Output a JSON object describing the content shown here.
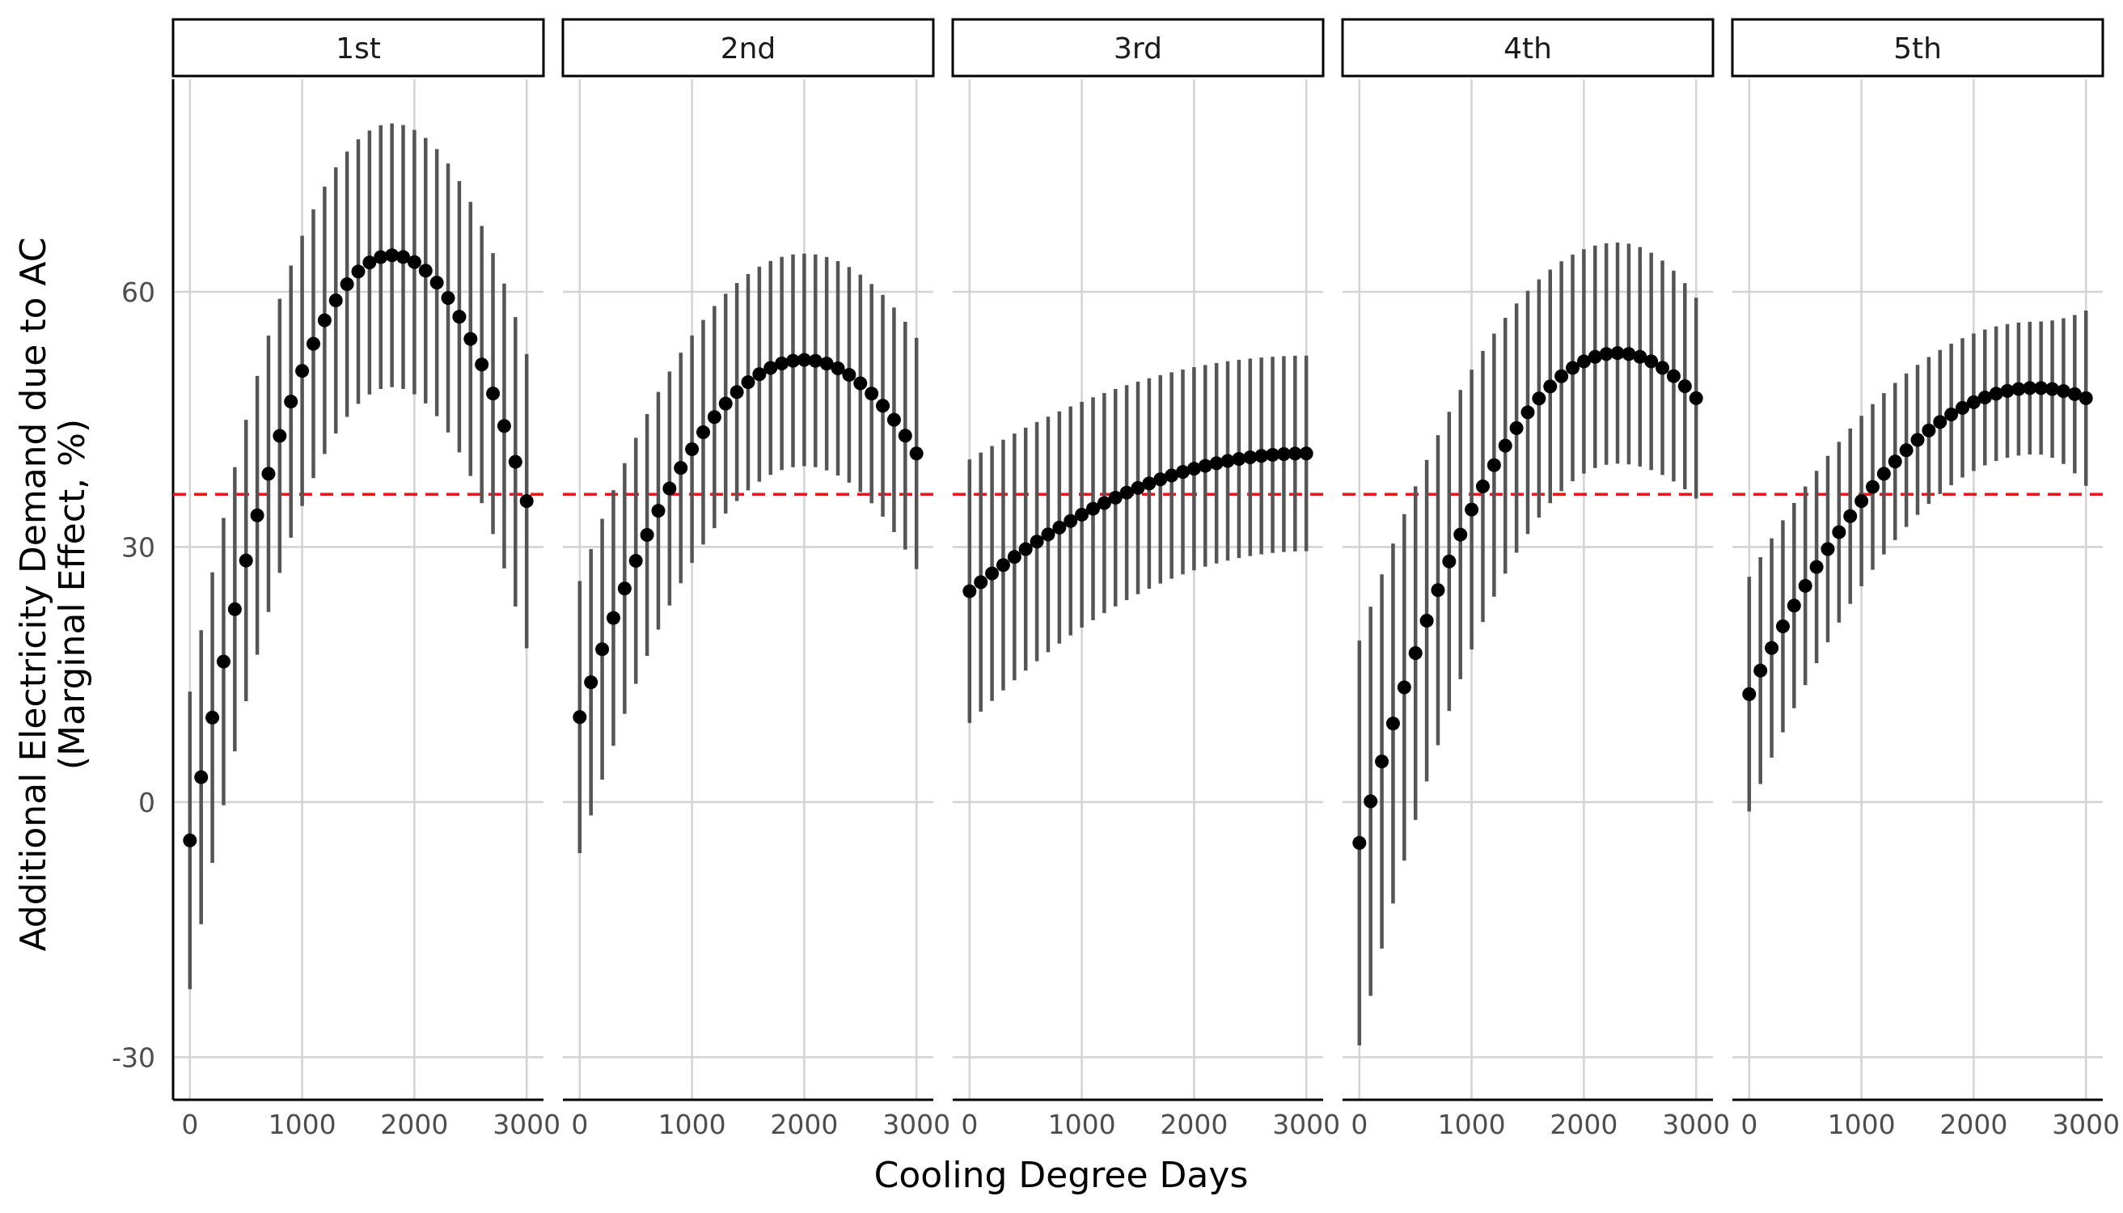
{
  "chart_data": {
    "type": "scatter",
    "subtype": "faceted point-range (point estimates with confidence interval bars)",
    "xlabel": "Cooling Degree Days",
    "ylabel_lines": [
      "Additional Electricity Demand due to AC",
      "(Marginal Effect, %)"
    ],
    "xlim": [
      -150,
      3150
    ],
    "ylim": [
      -35,
      85
    ],
    "x_ticks": [
      0,
      1000,
      2000,
      3000
    ],
    "x_tick_labels": [
      "0",
      "1000",
      "2000",
      "3000"
    ],
    "y_ticks": [
      -30,
      0,
      30,
      60
    ],
    "y_tick_labels": [
      "-30",
      "0",
      "30",
      "60"
    ],
    "grid": true,
    "reference_line": {
      "y": 36.2,
      "style": "dashed",
      "color": "#e31a1c"
    },
    "colors": {
      "point": "#000000",
      "errorbar": "#555555",
      "grid": "#d3d3d3",
      "strip_border": "#000000"
    },
    "facets": [
      {
        "label": "1st",
        "cdd_max": 3000,
        "y_start": -4.5,
        "y_peak": 64.3,
        "x_peak": 1800,
        "y_end": 35.4,
        "ci_start": 17.5,
        "ci_peak": 15.5,
        "ci_end": 17.3
      },
      {
        "label": "2nd",
        "cdd_max": 3000,
        "y_start": 10.0,
        "y_peak": 52.0,
        "x_peak": 2000,
        "y_end": 41.0,
        "ci_start": 16.0,
        "ci_peak": 12.5,
        "ci_end": 13.6
      },
      {
        "label": "3rd",
        "cdd_max": 3000,
        "y_start": 24.8,
        "y_peak": 41.0,
        "x_peak": 3000,
        "y_end": 41.0,
        "ci_start": 15.5,
        "ci_peak": 11.5,
        "ci_end": 11.8
      },
      {
        "label": "4th",
        "cdd_max": 3000,
        "y_start": -4.8,
        "y_peak": 52.8,
        "x_peak": 2300,
        "y_end": 47.5,
        "ci_start": 23.8,
        "ci_peak": 13.0,
        "ci_end": 11.8
      },
      {
        "label": "5th",
        "cdd_max": 3000,
        "y_start": 12.7,
        "y_peak": 48.7,
        "x_peak": 2550,
        "y_end": 47.5,
        "ci_start": 13.8,
        "ci_peak": 7.8,
        "ci_end": 10.3
      }
    ]
  }
}
